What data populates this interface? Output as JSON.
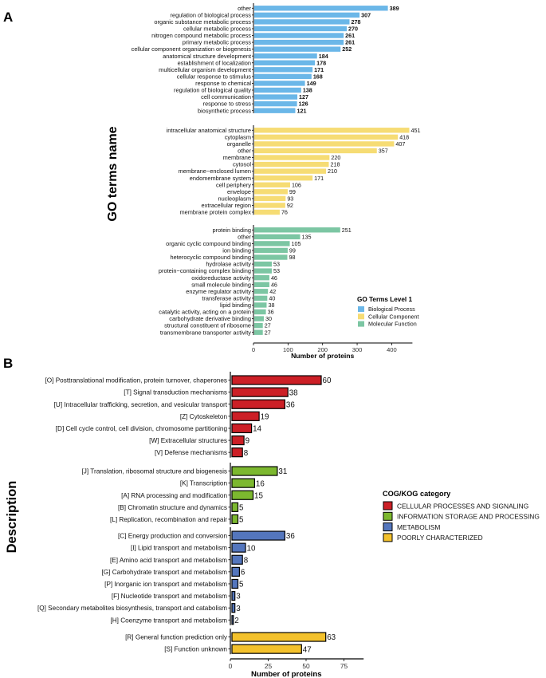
{
  "panel_a_letter": "A",
  "panel_b_letter": "B",
  "chart_data": [
    {
      "type": "bar",
      "orientation": "horizontal",
      "title": "",
      "ylabel": "GO terms name",
      "xlabel": "Number of proteins",
      "xlim": [
        0,
        460
      ],
      "xticks": [
        0,
        100,
        200,
        300,
        400
      ],
      "legend": {
        "title": "GO Terms Level 1",
        "placement": "bottom-right",
        "entries": [
          "Biological Process",
          "Cellular Component",
          "Molecular Function"
        ]
      },
      "colors": {
        "Biological Process": "#6bb7e8",
        "Cellular Component": "#f6dc74",
        "Molecular Function": "#7cc6a3"
      },
      "groups": [
        {
          "name": "Biological Process",
          "bold_values": true,
          "categories": [
            "other",
            "regulation of biological process",
            "organic substance metabolic process",
            "cellular metabolic process",
            "nitrogen compound metabolic process",
            "primary metabolic process",
            "cellular component organization or biogenesis",
            "anatomical structure development",
            "establishment of localization",
            "multicellular organism development",
            "cellular response to stimulus",
            "response to chemical",
            "regulation of biological quality",
            "cell communication",
            "response to stress",
            "biosynthetic process"
          ],
          "values": [
            389,
            307,
            278,
            270,
            261,
            261,
            252,
            184,
            178,
            171,
            168,
            149,
            138,
            127,
            126,
            121
          ]
        },
        {
          "name": "Cellular Component",
          "bold_values": false,
          "categories": [
            "intracellular anatomical structure",
            "cytoplasm",
            "organelle",
            "other",
            "membrane",
            "cytosol",
            "membrane−enclosed lumen",
            "endomembrane system",
            "cell periphery",
            "envelope",
            "nucleoplasm",
            "extracellular region",
            "membrane protein complex"
          ],
          "values": [
            451,
            418,
            407,
            357,
            220,
            218,
            210,
            171,
            106,
            99,
            93,
            92,
            76
          ]
        },
        {
          "name": "Molecular Function",
          "bold_values": false,
          "categories": [
            "protein binding",
            "other",
            "organic cyclic compound binding",
            "ion binding",
            "heterocyclic compound binding",
            "hydrolase activity",
            "protein−containing complex binding",
            "oxidoreductase activity",
            "small molecule binding",
            "enzyme regulator activity",
            "transferase activity",
            "lipid binding",
            "catalytic activity, acting on a protein",
            "carbohydrate derivative binding",
            "structural constituent of ribosome",
            "transmembrane transporter activity"
          ],
          "values": [
            251,
            135,
            105,
            99,
            98,
            53,
            53,
            46,
            46,
            42,
            40,
            38,
            36,
            30,
            27,
            27
          ]
        }
      ]
    },
    {
      "type": "bar",
      "orientation": "horizontal",
      "title": "",
      "ylabel": "Description",
      "xlabel": "Number of proteins",
      "xlim": [
        0,
        88
      ],
      "xticks": [
        0,
        25,
        50,
        75
      ],
      "legend": {
        "title": "COG/KOG category",
        "placement": "right",
        "entries": [
          "CELLULAR PROCESSES AND SIGNALING",
          "INFORMATION STORAGE AND PROCESSING",
          "METABOLISM",
          "POORLY CHARACTERIZED"
        ]
      },
      "colors": {
        "CELLULAR PROCESSES AND SIGNALING": "#cc1f26",
        "INFORMATION STORAGE AND PROCESSING": "#7cb82f",
        "METABOLISM": "#5476bd",
        "POORLY CHARACTERIZED": "#f3c12c"
      },
      "groups": [
        {
          "name": "CELLULAR PROCESSES AND SIGNALING",
          "categories": [
            "[O] Posttranslational modification, protein turnover, chaperones",
            "[T] Signal transduction mechanisms",
            "[U] Intracellular trafficking, secretion, and vesicular transport",
            "[Z] Cytoskeleton",
            "[D] Cell cycle control, cell division, chromosome partitioning",
            "[W] Extracellular structures",
            "[V] Defense mechanisms"
          ],
          "values": [
            60,
            38,
            36,
            19,
            14,
            9,
            8
          ]
        },
        {
          "name": "INFORMATION STORAGE AND PROCESSING",
          "categories": [
            "[J] Translation, ribosomal structure and biogenesis",
            "[K] Transcription",
            "[A] RNA processing and modification",
            "[B] Chromatin structure and dynamics",
            "[L] Replication, recombination and repair"
          ],
          "values": [
            31,
            16,
            15,
            5,
            5
          ]
        },
        {
          "name": "METABOLISM",
          "categories": [
            "[C] Energy production and conversion",
            "[I] Lipid transport and metabolism",
            "[E] Amino acid transport and metabolism",
            "[G] Carbohydrate transport and metabolism",
            "[P] Inorganic ion transport and metabolism",
            "[F] Nucleotide transport and metabolism",
            "[Q] Secondary metabolites biosynthesis, transport and catabolism",
            "[H] Coenzyme transport and metabolism"
          ],
          "values": [
            36,
            10,
            8,
            6,
            5,
            3,
            3,
            2
          ]
        },
        {
          "name": "POORLY CHARACTERIZED",
          "categories": [
            "[R] General function prediction only",
            "[S] Function unknown"
          ],
          "values": [
            63,
            47
          ]
        }
      ]
    }
  ]
}
